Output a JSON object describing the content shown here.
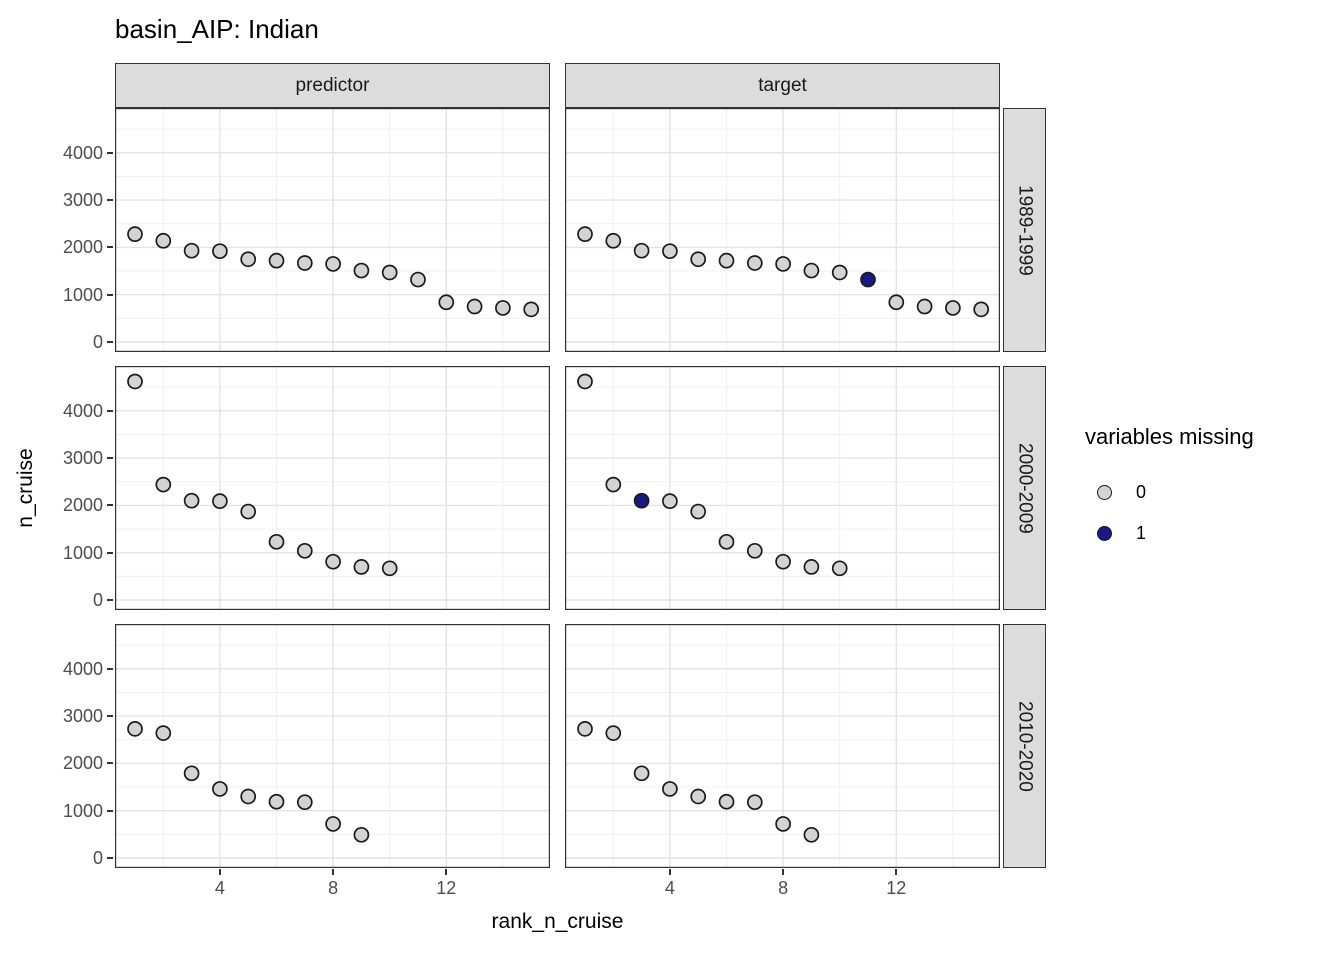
{
  "chart_data": {
    "type": "scatter",
    "title": "basin_AIP: Indian",
    "xlabel": "rank_n_cruise",
    "ylabel": "n_cruise",
    "col_facets": [
      "predictor",
      "target"
    ],
    "row_facets": [
      "1989-1999",
      "2000-2009",
      "2010-2020"
    ],
    "x_ticks": [
      4,
      8,
      12
    ],
    "x_minor": [
      2,
      6,
      10,
      14
    ],
    "y_ticks": [
      0,
      1000,
      2000,
      3000,
      4000
    ],
    "y_minor": [
      500,
      1500,
      2500,
      3500,
      4500
    ],
    "xlim": [
      0.3,
      15.7
    ],
    "ylim": [
      -210,
      4950
    ],
    "grid": "major-and-minor",
    "legend": {
      "title": "variables missing",
      "position": "right",
      "items": [
        {
          "label": "0",
          "color": "#D3D3D3"
        },
        {
          "label": "1",
          "color": "#191985"
        }
      ]
    },
    "point_outline": "#1a1a1a",
    "series": [
      {
        "row": "1989-1999",
        "values": [
          [
            1,
            2280
          ],
          [
            2,
            2140
          ],
          [
            3,
            1930
          ],
          [
            4,
            1920
          ],
          [
            5,
            1750
          ],
          [
            6,
            1720
          ],
          [
            7,
            1670
          ],
          [
            8,
            1650
          ],
          [
            9,
            1510
          ],
          [
            10,
            1470
          ],
          [
            11,
            1320
          ],
          [
            12,
            840
          ],
          [
            13,
            750
          ],
          [
            14,
            720
          ],
          [
            15,
            690
          ]
        ]
      },
      {
        "row": "2000-2009",
        "values": [
          [
            1,
            4620
          ],
          [
            2,
            2440
          ],
          [
            3,
            2100
          ],
          [
            4,
            2090
          ],
          [
            5,
            1870
          ],
          [
            6,
            1230
          ],
          [
            7,
            1040
          ],
          [
            8,
            810
          ],
          [
            9,
            700
          ],
          [
            10,
            670
          ]
        ]
      },
      {
        "row": "2010-2020",
        "values": [
          [
            1,
            2730
          ],
          [
            2,
            2640
          ],
          [
            3,
            1790
          ],
          [
            4,
            1460
          ],
          [
            5,
            1300
          ],
          [
            6,
            1190
          ],
          [
            7,
            1180
          ],
          [
            8,
            720
          ],
          [
            9,
            490
          ]
        ]
      }
    ],
    "panels": [
      {
        "col": "predictor",
        "row": "1989-1999",
        "missing_ranks": []
      },
      {
        "col": "target",
        "row": "1989-1999",
        "missing_ranks": [
          11
        ]
      },
      {
        "col": "predictor",
        "row": "2000-2009",
        "missing_ranks": []
      },
      {
        "col": "target",
        "row": "2000-2009",
        "missing_ranks": [
          3
        ]
      },
      {
        "col": "predictor",
        "row": "2010-2020",
        "missing_ranks": []
      },
      {
        "col": "target",
        "row": "2010-2020",
        "missing_ranks": []
      }
    ]
  }
}
